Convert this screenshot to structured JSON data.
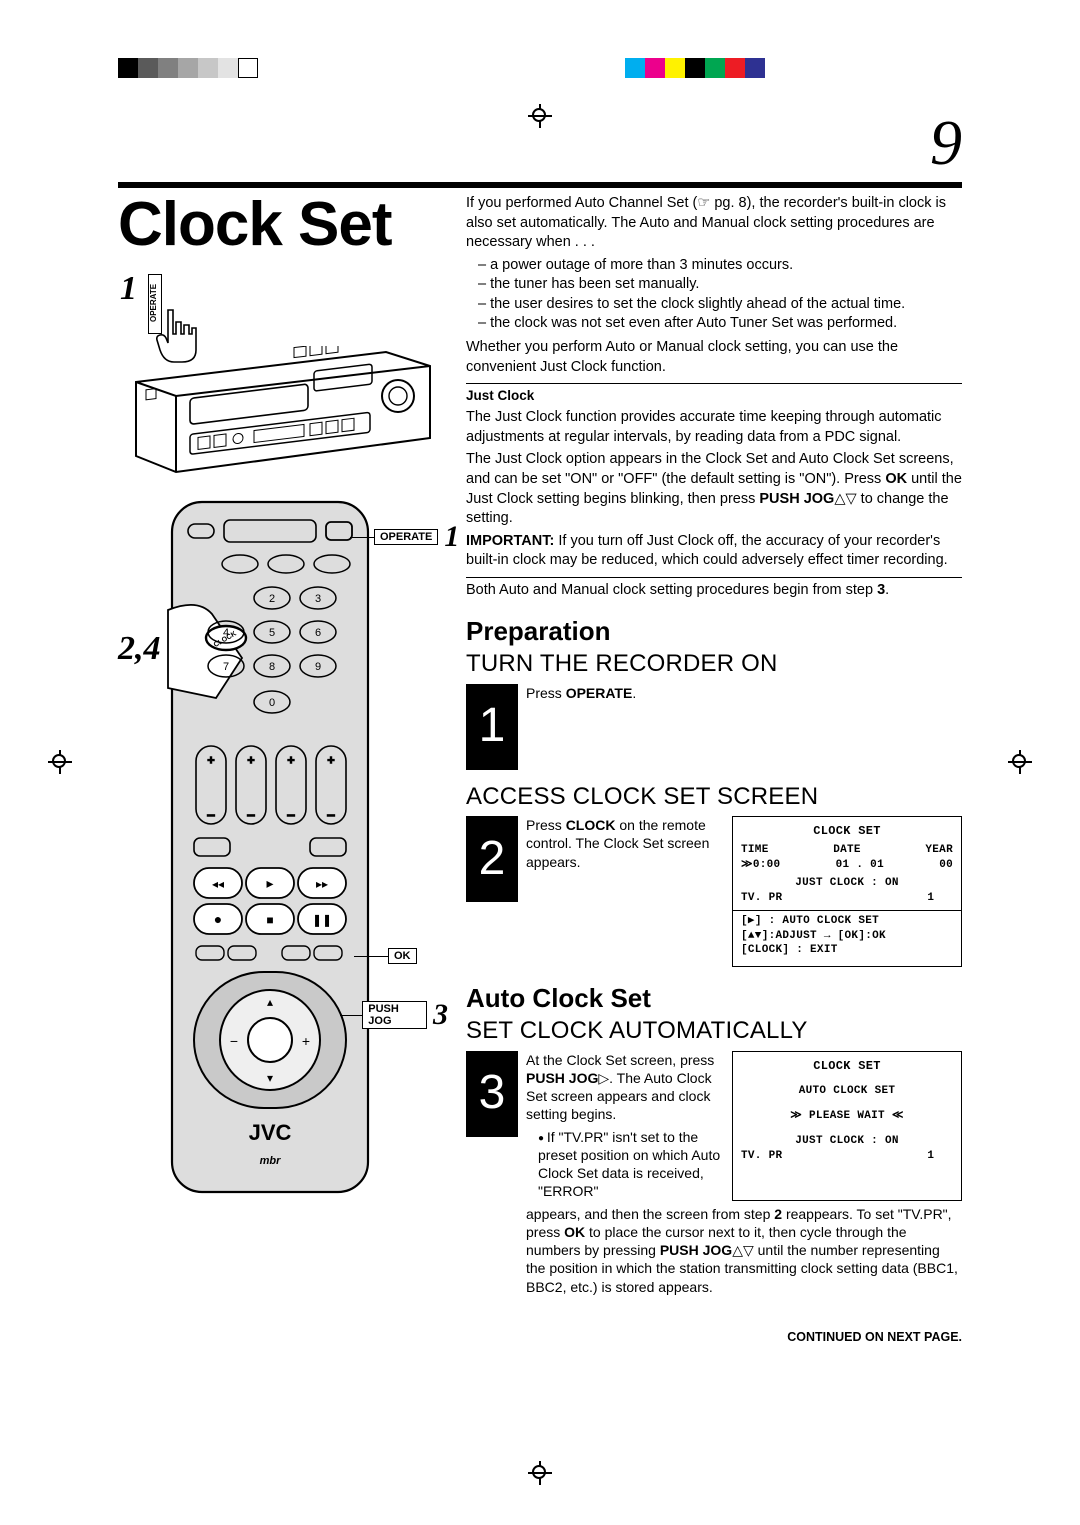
{
  "page_number": "9",
  "title": "Clock Set",
  "reg_colors_left": [
    "#000000",
    "#5a5a5a",
    "#808080",
    "#a6a6a6",
    "#c7c7c7",
    "#e3e3e3",
    "#ffffff"
  ],
  "reg_colors_right": [
    "#00aeef",
    "#ec008c",
    "#fff200",
    "#000000",
    "#00a651",
    "#ed1c24",
    "#2e3192"
  ],
  "step_refs": {
    "vcr": "1",
    "remote": "2,4"
  },
  "callouts": {
    "operate": {
      "label": "OPERATE",
      "step": "1"
    },
    "ok": {
      "label": "OK"
    },
    "pushjog": {
      "label": "PUSH JOG",
      "step": "3"
    }
  },
  "vcr_operate_label": "OPERATE",
  "remote_brand": "JVC",
  "intro": {
    "p1": "If you performed Auto Channel Set (☞ pg. 8), the recorder's built-in clock is also set automatically. The Auto and Manual clock setting procedures are necessary when . . .",
    "bullets": [
      "a power outage of more than 3 minutes occurs.",
      "the tuner has been set manually.",
      "the user desires to set the clock slightly ahead of the actual time.",
      "the clock was not set even after Auto Tuner Set was performed."
    ],
    "p2": "Whether you perform Auto or Manual clock setting, you can use the convenient Just Clock function."
  },
  "just_clock": {
    "heading": "Just Clock",
    "p1": "The Just Clock function provides accurate time keeping through automatic adjustments at regular intervals, by reading data from a PDC signal.",
    "p2_pre": "The Just Clock option appears in the Clock Set and Auto Clock Set screens, and can be set \"ON\" or \"OFF\" (the default setting is \"ON\"). Press ",
    "p2_ok": "OK",
    "p2_mid": " until the Just Clock setting begins blinking, then press ",
    "p2_pj": "PUSH JOG",
    "p2_end": "△▽ to change the setting.",
    "imp_label": "IMPORTANT:",
    "imp_text": " If you turn off Just Clock off, the accuracy of your recorder's built-in clock may be reduced, which could adversely effect timer recording."
  },
  "both_note_pre": "Both Auto and Manual clock setting procedures begin from step ",
  "both_note_step": "3",
  "both_note_post": ".",
  "preparation_heading": "Preparation",
  "auto_heading": "Auto Clock Set",
  "steps": {
    "1": {
      "title": "TURN THE RECORDER ON",
      "text_pre": "Press ",
      "text_btn": "OPERATE",
      "text_post": "."
    },
    "2": {
      "title": "ACCESS CLOCK SET SCREEN",
      "text_pre": "Press ",
      "text_btn": "CLOCK",
      "text_post": " on the remote control. The Clock Set screen appears."
    },
    "3": {
      "title": "SET CLOCK AUTOMATICALLY",
      "text_pre": "At the Clock Set screen, press ",
      "text_btn": "PUSH JOG",
      "text_mid": "▷. The Auto Clock Set screen appears and clock setting begins.",
      "bullet": "If \"TV.PR\" isn't set to the preset position on which Auto Clock Set data is received, \"ERROR\"",
      "after_pre": "appears, and then the screen from step ",
      "after_step": "2",
      "after_mid": " reappears. To set \"TV.PR\", press ",
      "after_ok": "OK",
      "after_mid2": " to place the cursor next to it, then cycle through the numbers by pressing ",
      "after_pj": "PUSH JOG",
      "after_end": "△▽ until the number representing the position in which the station transmitting clock setting data (BBC1, BBC2, etc.) is stored appears."
    }
  },
  "osd1": {
    "title": "CLOCK SET",
    "cols": [
      "TIME",
      "DATE",
      "YEAR"
    ],
    "vals": [
      "0:00",
      "01 . 01",
      "00"
    ],
    "jc": "JUST  CLOCK : ON",
    "tvpr": "TV. PR                     1",
    "l1": "[▶] : AUTO  CLOCK  SET",
    "l2": "[▲▼]:ADJUST →  [OK]:OK",
    "l3": "[CLOCK]  : EXIT"
  },
  "osd2": {
    "title": "CLOCK SET",
    "sub": "AUTO CLOCK SET",
    "wait": "PLEASE WAIT",
    "jc": "JUST   CLOCK : ON",
    "tvpr": "TV. PR                     1"
  },
  "continued": "CONTINUED ON NEXT PAGE."
}
